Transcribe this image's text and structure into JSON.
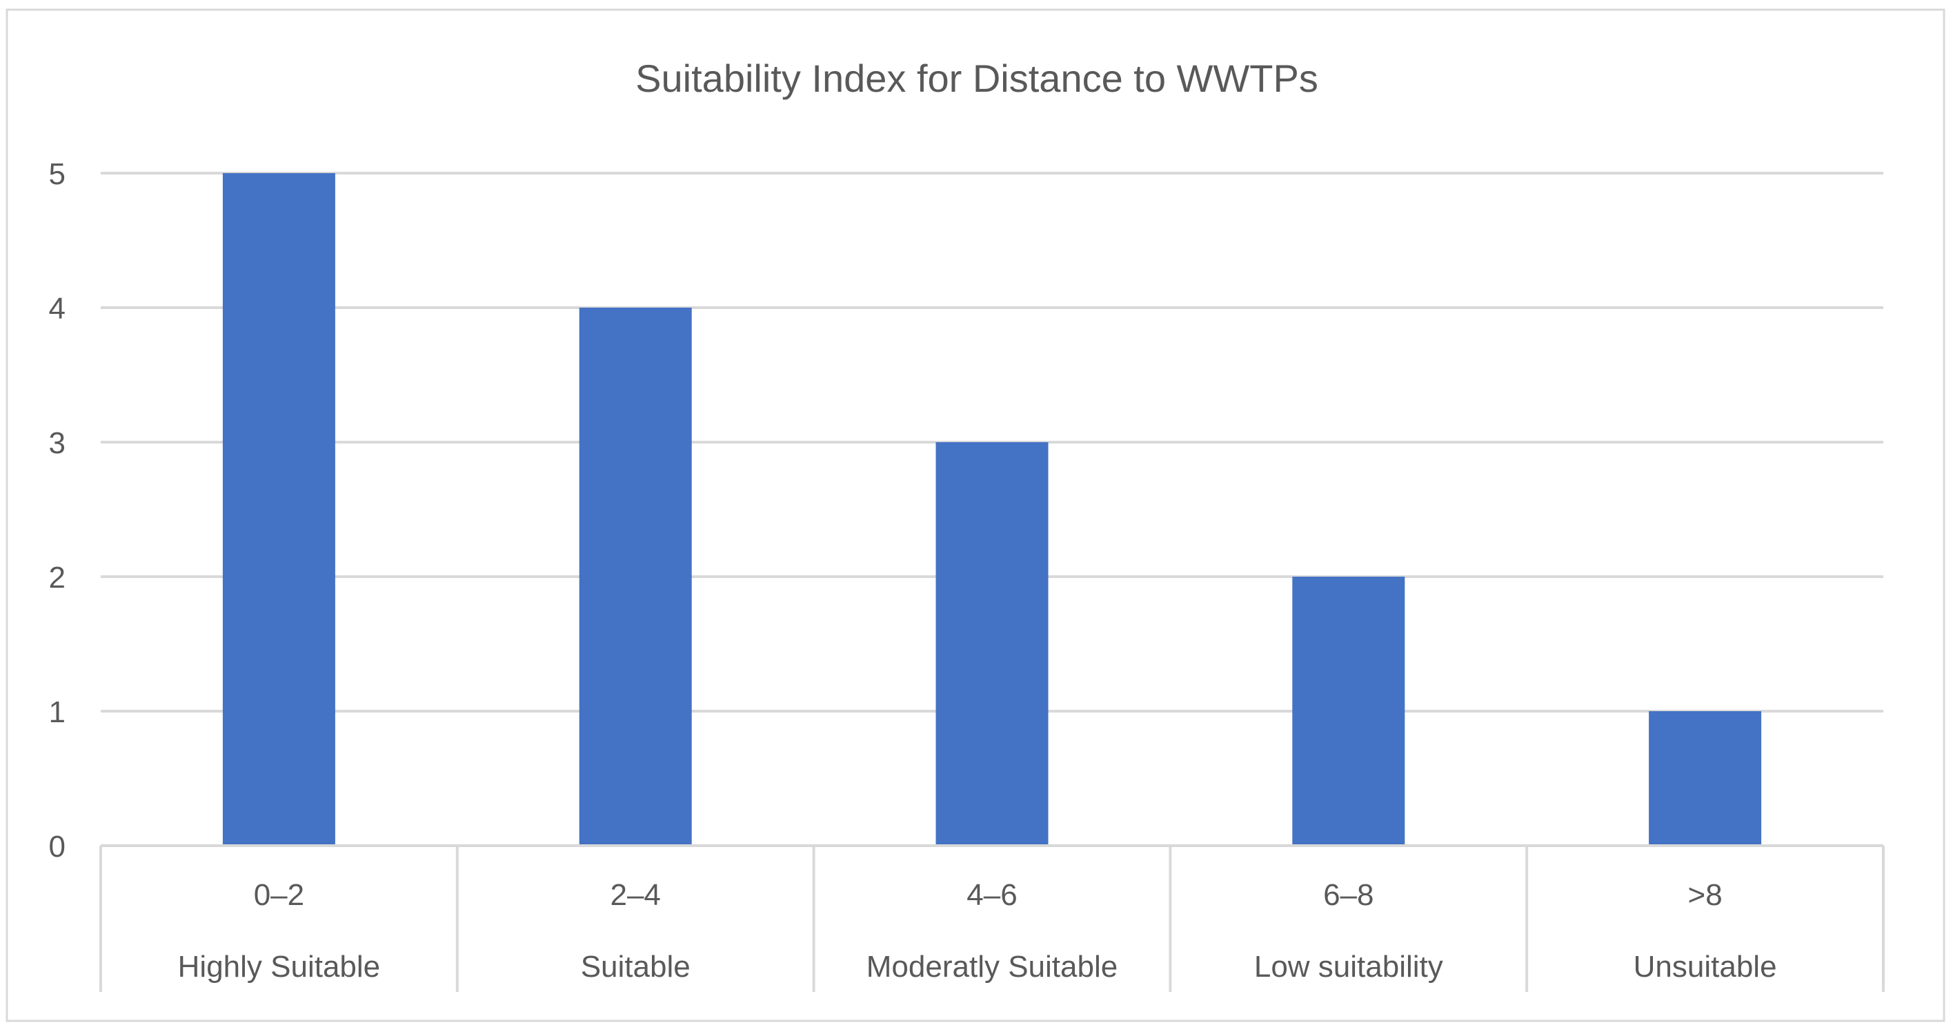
{
  "chart_data": {
    "type": "bar",
    "title": "Suitability Index for Distance to WWTPs",
    "categories": [
      "0–2",
      "2–4",
      "4–6",
      "6–8",
      ">8"
    ],
    "category_sublabels": [
      "Highly Suitable",
      "Suitable",
      "Moderatly Suitable",
      "Low suitability",
      "Unsuitable"
    ],
    "values": [
      5,
      4,
      3,
      2,
      1
    ],
    "yticks": [
      "0",
      "1",
      "2",
      "3",
      "4",
      "5"
    ],
    "ylim": [
      0,
      5
    ],
    "xlabel": "",
    "ylabel": "",
    "grid": true,
    "legend": "none",
    "colors": {
      "bar": "#4472C4",
      "grid": "#D9D9D9",
      "text": "#595959",
      "border": "#D9D9D9"
    }
  }
}
